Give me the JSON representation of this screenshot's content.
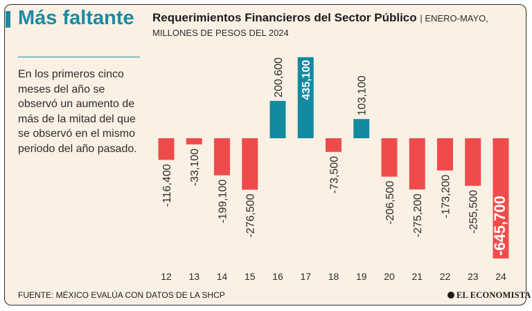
{
  "sidebar": {
    "headline": "Más faltante",
    "description": "En los primeros cinco meses del año se observó un aumento de más de la mitad del que se observó en el mismo periodo del año pasado."
  },
  "header": {
    "title": "Requerimientos Financieros del Sector Público",
    "subtitle_1": "ENERO-MAYO,",
    "subtitle_2": "MILLONES DE PESOS DEL 2024"
  },
  "footer": {
    "source": "FUENTE: MÉXICO EVALÚA CON DATOS DE LA SHCP",
    "brand": "EL ECONOMISTA"
  },
  "colors": {
    "positive": "#148aa1",
    "negative": "#ee4c4c",
    "background": "#fbf0e4",
    "accent": "#1a8aa3"
  },
  "chart_data": {
    "type": "bar",
    "categories": [
      "12",
      "13",
      "14",
      "15",
      "16",
      "17",
      "18",
      "19",
      "20",
      "21",
      "22",
      "23",
      "24"
    ],
    "values": [
      -116400,
      -33100,
      -199100,
      -276500,
      200600,
      435100,
      -73500,
      103100,
      -206500,
      -275200,
      -173200,
      -255500,
      -645700
    ],
    "labels": [
      "-116,400",
      "-33,100",
      "-199,100",
      "-276,500",
      "200,600",
      "435,100",
      "-73,500",
      "103,100",
      "-206,500",
      "-275,200",
      "-173,200",
      "-255,500",
      "-645,700"
    ],
    "highlighted": [
      "17",
      "24"
    ],
    "ylim": [
      -645700,
      435100
    ],
    "grid": false,
    "legend": "none"
  }
}
